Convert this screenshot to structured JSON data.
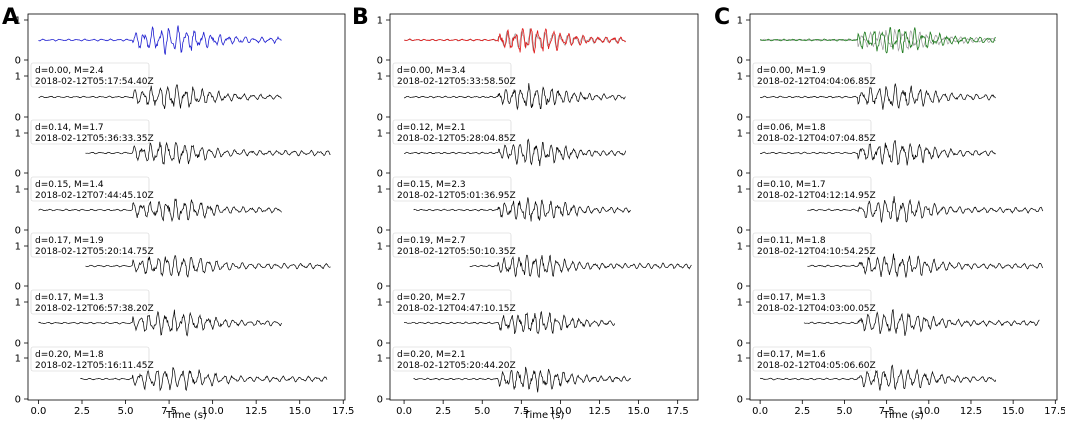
{
  "figure": {
    "panels": [
      {
        "letter": "A",
        "color": "#1f1fd0"
      },
      {
        "letter": "B",
        "color": "#e01818"
      },
      {
        "letter": "C",
        "color": "#1e7a1e"
      }
    ]
  },
  "chart_data": [
    {
      "type": "line",
      "panel": "A",
      "xlabel": "Time (s)",
      "xlim": [
        -0.6,
        17.6
      ],
      "xticks": [
        "0.0",
        "2.5",
        "5.0",
        "7.5",
        "10.0",
        "12.5",
        "15.0",
        "17.5"
      ],
      "yticks": [
        "0",
        "1"
      ],
      "template_color": "#1f1fd0",
      "template": {
        "start": 0.0,
        "onset": 5.4,
        "end": 14.0
      },
      "traces": [
        {
          "label1": "d=0.00, M=2.4",
          "label2": "2018-02-12T05:17:54.40Z",
          "start": 0.0,
          "onset": 5.4,
          "end": 14.0
        },
        {
          "label1": "d=0.14, M=1.7",
          "label2": "2018-02-12T05:36:33.35Z",
          "start": 2.7,
          "onset": 5.4,
          "end": 16.8
        },
        {
          "label1": "d=0.15, M=1.4",
          "label2": "2018-02-12T07:44:45.10Z",
          "start": 0.0,
          "onset": 5.4,
          "end": 14.0
        },
        {
          "label1": "d=0.17, M=1.9",
          "label2": "2018-02-12T05:20:14.75Z",
          "start": 2.7,
          "onset": 5.4,
          "end": 16.8
        },
        {
          "label1": "d=0.17, M=1.3",
          "label2": "2018-02-12T06:57:38.20Z",
          "start": 0.0,
          "onset": 5.4,
          "end": 14.0
        },
        {
          "label1": "d=0.20, M=1.8",
          "label2": "2018-02-12T05:16:11.45Z",
          "start": 2.4,
          "onset": 5.4,
          "end": 16.6
        }
      ]
    },
    {
      "type": "line",
      "panel": "B",
      "xlabel": "Time (s)",
      "xlim": [
        -0.9,
        18.8
      ],
      "xticks": [
        "0.0",
        "2.5",
        "5.0",
        "7.5",
        "10.0",
        "12.5",
        "15.0",
        "17.5"
      ],
      "yticks": [
        "0",
        "1"
      ],
      "template_color": "#e01818",
      "template": {
        "start": 0.0,
        "onset": 6.0,
        "end": 14.2
      },
      "traces": [
        {
          "label1": "d=0.00, M=3.4",
          "label2": "2018-02-12T05:33:58.50Z",
          "start": 0.0,
          "onset": 6.0,
          "end": 14.2
        },
        {
          "label1": "d=0.12, M=2.1",
          "label2": "2018-02-12T05:28:04.85Z",
          "start": 0.0,
          "onset": 6.0,
          "end": 14.2
        },
        {
          "label1": "d=0.15, M=2.3",
          "label2": "2018-02-12T05:01:36.95Z",
          "start": 0.6,
          "onset": 6.0,
          "end": 14.5
        },
        {
          "label1": "d=0.19, M=2.7",
          "label2": "2018-02-12T05:50:10.35Z",
          "start": 4.2,
          "onset": 6.0,
          "end": 18.4
        },
        {
          "label1": "d=0.20, M=2.7",
          "label2": "2018-02-12T04:47:10.15Z",
          "start": 0.0,
          "onset": 6.0,
          "end": 13.5
        },
        {
          "label1": "d=0.20, M=2.1",
          "label2": "2018-02-12T05:20:44.20Z",
          "start": 0.6,
          "onset": 6.0,
          "end": 14.5
        }
      ]
    },
    {
      "type": "line",
      "panel": "C",
      "xlabel": "Time (s)",
      "xlim": [
        -0.6,
        17.6
      ],
      "xticks": [
        "0.0",
        "2.5",
        "5.0",
        "7.5",
        "10.0",
        "12.5",
        "15.0",
        "17.5"
      ],
      "yticks": [
        "0",
        "1"
      ],
      "template_color": "#1e7a1e",
      "template": {
        "start": 0.0,
        "onset": 5.8,
        "end": 14.0
      },
      "traces": [
        {
          "label1": "d=0.00, M=1.9",
          "label2": "2018-02-12T04:04:06.85Z",
          "start": 0.0,
          "onset": 5.8,
          "end": 14.0
        },
        {
          "label1": "d=0.06, M=1.8",
          "label2": "2018-02-12T04:07:04.85Z",
          "start": 0.0,
          "onset": 5.8,
          "end": 14.0
        },
        {
          "label1": "d=0.10, M=1.7",
          "label2": "2018-02-12T04:12:14.95Z",
          "start": 2.8,
          "onset": 5.8,
          "end": 16.8
        },
        {
          "label1": "d=0.11, M=1.8",
          "label2": "2018-02-12T04:10:54.25Z",
          "start": 2.8,
          "onset": 5.8,
          "end": 16.8
        },
        {
          "label1": "d=0.17, M=1.3",
          "label2": "2018-02-12T04:03:00.05Z",
          "start": 2.6,
          "onset": 5.8,
          "end": 16.6
        },
        {
          "label1": "d=0.17, M=1.6",
          "label2": "2018-02-12T04:05:06.60Z",
          "start": 0.0,
          "onset": 5.8,
          "end": 14.0
        }
      ]
    }
  ]
}
